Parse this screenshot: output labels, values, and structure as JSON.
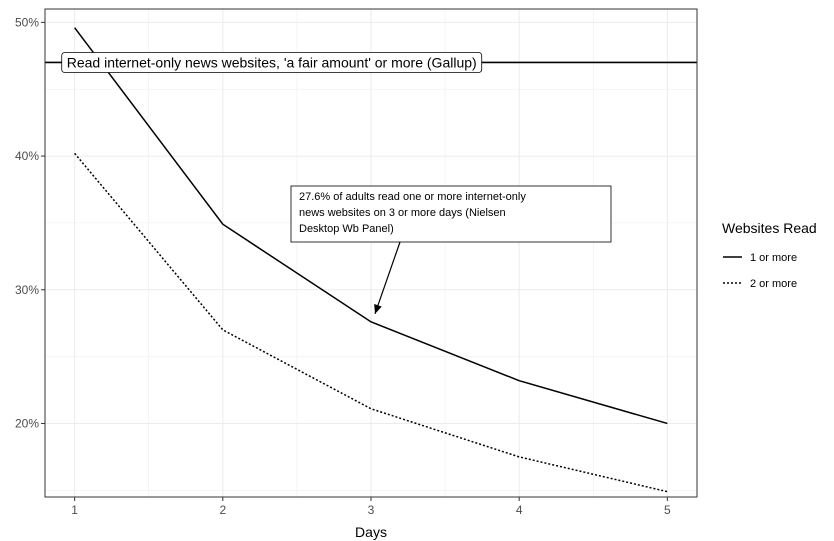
{
  "chart_data": {
    "type": "line",
    "xlabel": "Days",
    "ylabel": "",
    "title": "",
    "x": [
      1,
      2,
      3,
      4,
      5
    ],
    "xlim": [
      0.8,
      5.2
    ],
    "ylim": [
      14.5,
      51
    ],
    "x_ticks": [
      1,
      2,
      3,
      4,
      5
    ],
    "y_ticks": [
      20,
      30,
      40,
      50
    ],
    "y_tick_labels": [
      "20%",
      "30%",
      "40%",
      "50%"
    ],
    "grid": true,
    "legend_position": "right",
    "legend_title": "Websites Read",
    "series": [
      {
        "name": "1 or more",
        "values": [
          49.6,
          34.9,
          27.6,
          23.2,
          20.0
        ],
        "line_style": "solid"
      },
      {
        "name": "2 or more",
        "values": [
          40.2,
          27.0,
          21.1,
          17.5,
          14.9
        ],
        "line_style": "dotted"
      }
    ],
    "reference_line": {
      "y": 47.0,
      "label": "Read internet-only news websites, 'a fair amount' or more (Gallup)"
    },
    "annotation": {
      "lines": [
        "27.6% of adults read one or more internet-only",
        "news websites on 3 or more days (Nielsen",
        "Desktop Wb Panel)"
      ],
      "arrow_to": {
        "x": 3,
        "y": 27.6
      }
    }
  },
  "colors": {
    "line": "#000000",
    "grid": "#ebebeb",
    "panel_border": "#333333",
    "tick_text": "#4d4d4d"
  }
}
